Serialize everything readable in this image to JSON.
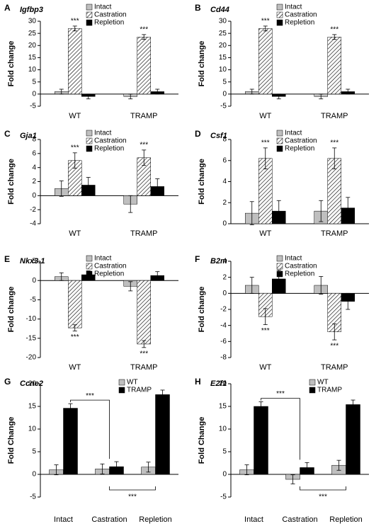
{
  "chart_data": [
    {
      "type": "bar",
      "label": "A",
      "title": "Igfbp3",
      "y_label": "Fold change",
      "categories": [
        "WT",
        "TRAMP"
      ],
      "series": [
        {
          "name": "Intact",
          "color": "#bfbfbf",
          "values": [
            1,
            -1
          ],
          "errors": [
            1,
            1
          ]
        },
        {
          "name": "Castration",
          "color": "#ffffff",
          "hatch": true,
          "values": [
            27,
            23.5
          ],
          "errors": [
            1,
            1
          ]
        },
        {
          "name": "Repletion",
          "color": "#000000",
          "values": [
            -1,
            1
          ],
          "errors": [
            1,
            1
          ]
        }
      ],
      "annotations": [
        "***",
        "***"
      ],
      "ylim": [
        -5,
        30
      ],
      "yticks": [
        -5,
        0,
        5,
        10,
        15,
        20,
        25,
        30
      ]
    },
    {
      "type": "bar",
      "label": "B",
      "title": "Cd44",
      "y_label": "Fold change",
      "categories": [
        "WT",
        "TRAMP"
      ],
      "series": [
        {
          "name": "Intact",
          "color": "#bfbfbf",
          "values": [
            1,
            -1
          ],
          "errors": [
            1,
            1
          ]
        },
        {
          "name": "Castration",
          "color": "#ffffff",
          "hatch": true,
          "values": [
            27,
            23.5
          ],
          "errors": [
            1,
            1
          ]
        },
        {
          "name": "Repletion",
          "color": "#000000",
          "values": [
            -1,
            1
          ],
          "errors": [
            1,
            1
          ]
        }
      ],
      "annotations": [
        "***",
        "***"
      ],
      "ylim": [
        -5,
        30
      ],
      "yticks": [
        -5,
        0,
        5,
        10,
        15,
        20,
        25,
        30
      ]
    },
    {
      "type": "bar",
      "label": "C",
      "title": "Gja1",
      "y_label": "Fold change",
      "categories": [
        "WT",
        "TRAMP"
      ],
      "series": [
        {
          "name": "Intact",
          "color": "#bfbfbf",
          "values": [
            1,
            -1.2
          ],
          "errors": [
            1.1,
            1.2
          ]
        },
        {
          "name": "Castration",
          "color": "#ffffff",
          "hatch": true,
          "values": [
            5,
            5.4
          ],
          "errors": [
            1.1,
            1.1
          ]
        },
        {
          "name": "Repletion",
          "color": "#000000",
          "values": [
            1.5,
            1.3
          ],
          "errors": [
            1.1,
            1.1
          ]
        }
      ],
      "annotations": [
        "***",
        "***"
      ],
      "ylim": [
        -4,
        8
      ],
      "yticks": [
        -4,
        -2,
        0,
        2,
        4,
        6,
        8
      ]
    },
    {
      "type": "bar",
      "label": "D",
      "title": "Csf1",
      "y_label": "Fold change",
      "categories": [
        "WT",
        "TRAMP"
      ],
      "series": [
        {
          "name": "Intact",
          "color": "#bfbfbf",
          "values": [
            1,
            1.2
          ],
          "errors": [
            1.1,
            1
          ]
        },
        {
          "name": "Castration",
          "color": "#ffffff",
          "hatch": true,
          "values": [
            6.2,
            6.2
          ],
          "errors": [
            1,
            1
          ]
        },
        {
          "name": "Repletion",
          "color": "#000000",
          "values": [
            1.2,
            1.5
          ],
          "errors": [
            1,
            1
          ]
        }
      ],
      "annotations": [
        "***",
        "***"
      ],
      "ylim": [
        0,
        8
      ],
      "yticks": [
        0,
        2,
        4,
        6,
        8
      ]
    },
    {
      "type": "bar",
      "label": "E",
      "title": "Nkx3.1",
      "y_label": "Fold change",
      "categories": [
        "WT",
        "TRAMP"
      ],
      "series": [
        {
          "name": "Intact",
          "color": "#bfbfbf",
          "values": [
            1,
            -1.5
          ],
          "errors": [
            1,
            1.2
          ]
        },
        {
          "name": "Castration",
          "color": "#ffffff",
          "hatch": true,
          "values": [
            -12.3,
            -16.5
          ],
          "errors": [
            0.8,
            0.9
          ]
        },
        {
          "name": "Repletion",
          "color": "#000000",
          "values": [
            1.5,
            1.3
          ],
          "errors": [
            1,
            1
          ]
        }
      ],
      "annotations": [
        "***",
        "***"
      ],
      "ylim": [
        -20,
        5
      ],
      "yticks": [
        -20,
        -15,
        -10,
        -5,
        0,
        5
      ]
    },
    {
      "type": "bar",
      "label": "F",
      "title": "B2m",
      "y_label": "Fold change",
      "categories": [
        "WT",
        "TRAMP"
      ],
      "series": [
        {
          "name": "Intact",
          "color": "#bfbfbf",
          "values": [
            1,
            1
          ],
          "errors": [
            1,
            1.1
          ]
        },
        {
          "name": "Castration",
          "color": "#ffffff",
          "hatch": true,
          "values": [
            -2.9,
            -4.8
          ],
          "errors": [
            1,
            1
          ]
        },
        {
          "name": "Repletion",
          "color": "#000000",
          "values": [
            1.8,
            -1
          ],
          "errors": [
            1.1,
            1
          ]
        }
      ],
      "annotations": [
        "***",
        "***"
      ],
      "ylim": [
        -8,
        4
      ],
      "yticks": [
        -8,
        -6,
        -4,
        -2,
        0,
        2,
        4
      ]
    },
    {
      "type": "bar",
      "label": "G",
      "title": "Ccne2",
      "y_label": "Fold Change",
      "categories": [
        "Intact",
        "Castration",
        "Repletion"
      ],
      "series": [
        {
          "name": "WT",
          "color": "#bfbfbf",
          "values": [
            1,
            1.2,
            1.6
          ],
          "errors": [
            1.1,
            1.1,
            1.1
          ]
        },
        {
          "name": "TRAMP",
          "color": "#000000",
          "values": [
            14.6,
            1.7,
            17.6
          ],
          "errors": [
            1,
            1.1,
            1
          ]
        }
      ],
      "brackets": [
        "***",
        "***"
      ],
      "ylim": [
        -5,
        20
      ],
      "yticks": [
        -5,
        0,
        5,
        10,
        15,
        20
      ]
    },
    {
      "type": "bar",
      "label": "H",
      "title": "E2f1",
      "y_label": "Fold Change",
      "categories": [
        "Intact",
        "Castration",
        "Repletion"
      ],
      "series": [
        {
          "name": "WT",
          "color": "#bfbfbf",
          "values": [
            1,
            -1.1,
            2
          ],
          "errors": [
            1.1,
            1,
            1.1
          ]
        },
        {
          "name": "TRAMP",
          "color": "#000000",
          "values": [
            15,
            1.5,
            15.4
          ],
          "errors": [
            1,
            1.1,
            1
          ]
        }
      ],
      "brackets": [
        "***",
        "***"
      ],
      "ylim": [
        -5,
        20
      ],
      "yticks": [
        -5,
        0,
        5,
        10,
        15,
        20
      ]
    }
  ]
}
